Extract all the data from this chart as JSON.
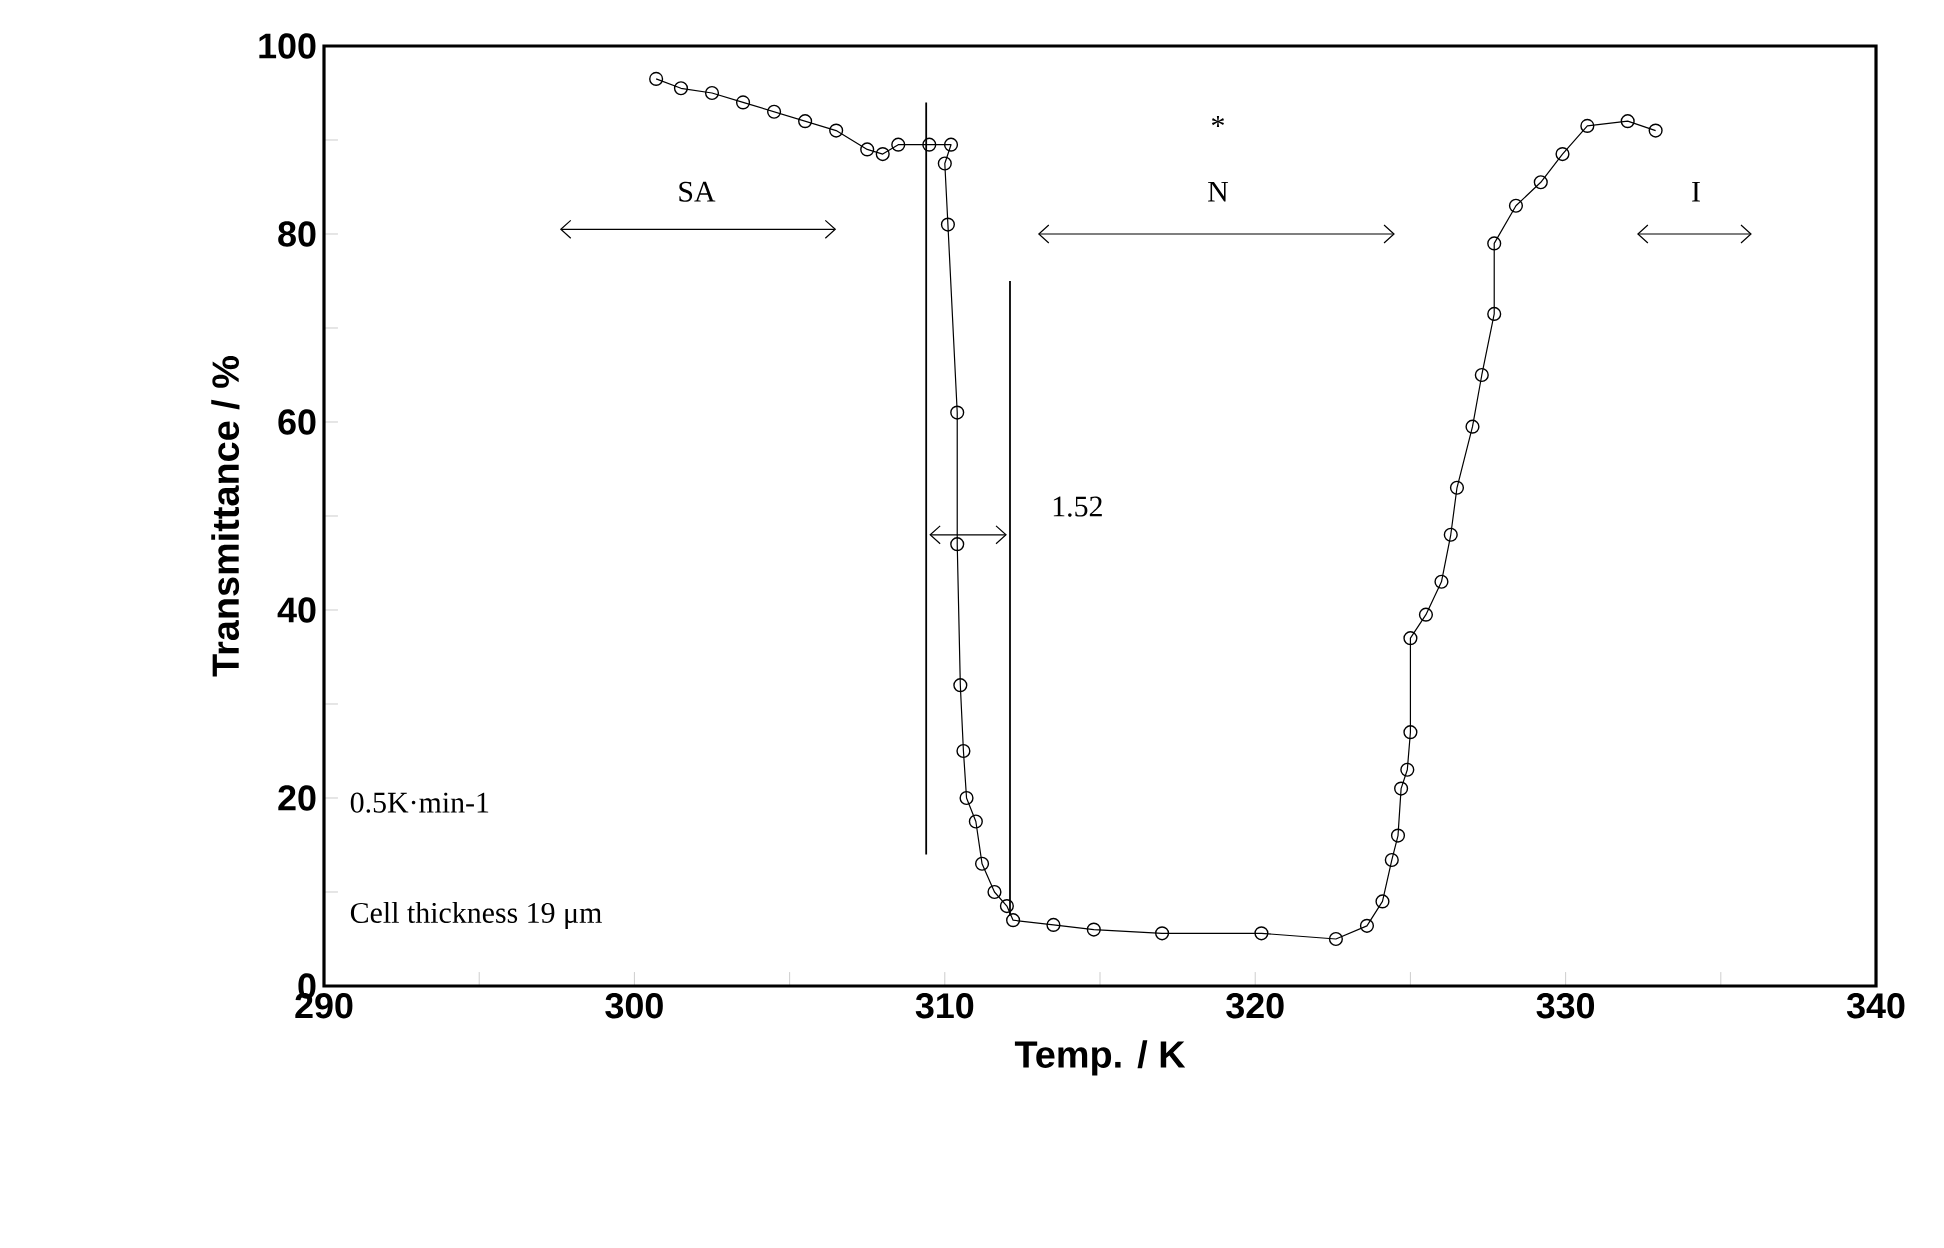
{
  "chart_data": {
    "type": "line",
    "xlabel": "Temp. / K",
    "ylabel": "Transmittance / %",
    "xlim": [
      290,
      340
    ],
    "ylim": [
      0,
      100
    ],
    "xticks": [
      290,
      {
        "value": 295,
        "label": null
      },
      300,
      {
        "value": 305,
        "label": null
      },
      310,
      {
        "value": 315,
        "label": null
      },
      320,
      {
        "value": 325,
        "label": null
      },
      330,
      {
        "value": 335,
        "label": null
      },
      340
    ],
    "yticks": [
      0,
      {
        "value": 10,
        "label": null
      },
      20,
      {
        "value": 30,
        "label": null
      },
      40,
      {
        "value": 50,
        "label": null
      },
      60,
      {
        "value": 70,
        "label": null
      },
      80,
      {
        "value": 90,
        "label": null
      },
      100
    ],
    "series": [
      {
        "color": "#000000",
        "marker": "circle",
        "x": [
          300.7,
          301.5,
          302.5,
          303.5,
          304.5,
          305.5,
          306.5,
          307.5,
          308,
          308.5,
          309.5,
          310.2,
          310.0,
          310.1,
          310.4,
          310.4,
          310.5,
          310.6,
          310.7,
          311.0,
          311.2,
          311.6,
          312.0,
          312.2,
          313.5,
          314.8,
          317,
          320.2,
          322.6,
          323.6,
          324.1,
          324.4,
          324.6,
          324.7,
          324.9,
          325.0,
          325.0,
          325.5,
          326.0,
          326.3,
          326.5,
          327.0,
          327.3,
          327.7,
          327.7,
          328.4,
          329.2,
          329.9,
          330.7,
          332,
          332.9
        ],
        "values": [
          96.5,
          95.5,
          95,
          94,
          93,
          92,
          91,
          89,
          88.5,
          89.5,
          89.5,
          89.5,
          87.5,
          81,
          61,
          47,
          32,
          25,
          20,
          17.5,
          13,
          10,
          8.5,
          7,
          6.5,
          6,
          5.6,
          5.6,
          5,
          6.4,
          9,
          13.4,
          16,
          21,
          23,
          27,
          37,
          39.5,
          43,
          48,
          53,
          59.5,
          65,
          71.5,
          79,
          83,
          85.5,
          88.5,
          91.5,
          92,
          91
        ]
      },
      {
        "color": "#000000",
        "marker": "none",
        "x": [
          309.4,
          309.4
        ],
        "values": [
          14,
          94
        ]
      },
      {
        "color": "#000000",
        "marker": "none",
        "x": [
          312.1,
          312.1
        ],
        "values": [
          7.5,
          75
        ]
      }
    ],
    "annotations": [
      "SA",
      "*",
      "N",
      "I",
      "1.52",
      "0.5K·min-1",
      "Cell thickness 19 μm"
    ]
  }
}
